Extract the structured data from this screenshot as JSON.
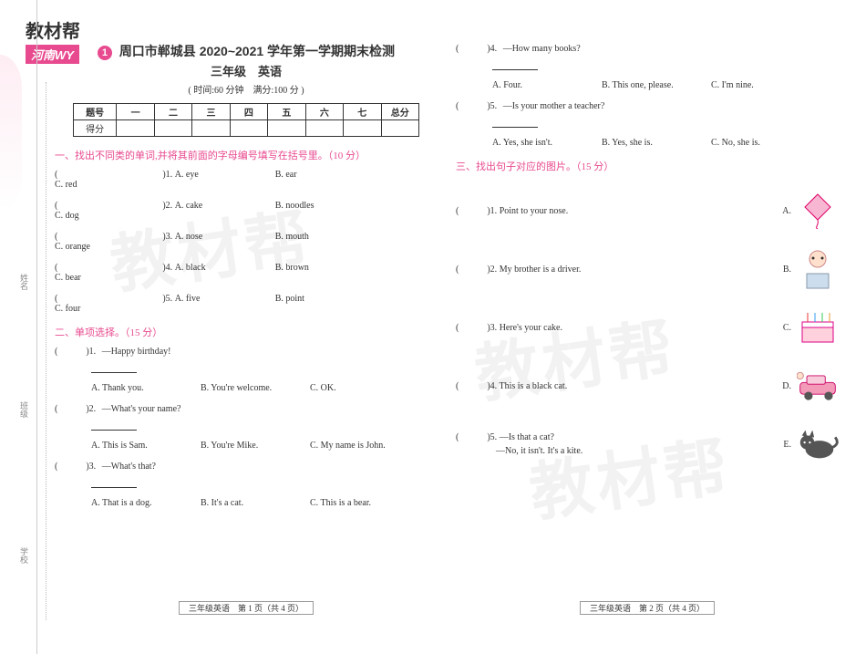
{
  "brand": {
    "title": "教材帮",
    "subtitle": "河南WY"
  },
  "sideLabels": {
    "name": "姓名",
    "class": "班级",
    "school": "学校"
  },
  "watermark": "教材帮",
  "header": {
    "badge": "1",
    "title": "周口市郸城县 2020~2021 学年第一学期期末检测",
    "gradeSubject": "三年级　英语",
    "info": "( 时间:60 分钟　满分:100 分 )"
  },
  "scoreTable": {
    "headers": [
      "题号",
      "一",
      "二",
      "三",
      "四",
      "五",
      "六",
      "七",
      "总分"
    ],
    "rowLabel": "得分"
  },
  "section1": {
    "title": "一、找出不同类的单词,并将其前面的字母编号填写在括号里。（10 分）",
    "items": [
      {
        "n": "1",
        "opts": [
          "A. eye",
          "B. ear",
          "C. red"
        ]
      },
      {
        "n": "2",
        "opts": [
          "A. cake",
          "B. noodles",
          "C. dog"
        ]
      },
      {
        "n": "3",
        "opts": [
          "A. nose",
          "B. mouth",
          "C. orange"
        ]
      },
      {
        "n": "4",
        "opts": [
          "A. black",
          "B. brown",
          "C. bear"
        ]
      },
      {
        "n": "5",
        "opts": [
          "A. five",
          "B. point",
          "C. four"
        ]
      }
    ]
  },
  "section2": {
    "title": "二、单项选择。（15 分）",
    "items": [
      {
        "n": "1",
        "q": "—Happy birthday!",
        "opts": [
          "A. Thank you.",
          "B. You're welcome.",
          "C. OK."
        ]
      },
      {
        "n": "2",
        "q": "—What's your name?",
        "opts": [
          "A. This is Sam.",
          "B. You're Mike.",
          "C. My name is John."
        ]
      },
      {
        "n": "3",
        "q": "—What's that?",
        "opts": [
          "A. That is a dog.",
          "B. It's a cat.",
          "C. This is a bear."
        ]
      },
      {
        "n": "4",
        "q": "—How many books?",
        "opts": [
          "A. Four.",
          "B. This one, please.",
          "C. I'm nine."
        ]
      },
      {
        "n": "5",
        "q": "—Is your mother a teacher?",
        "opts": [
          "A. Yes, she isn't.",
          "B. Yes, she is.",
          "C. No, she is."
        ]
      }
    ]
  },
  "section3": {
    "title": "三、找出句子对应的图片。（15 分）",
    "items": [
      {
        "n": "1",
        "text": "Point to your nose.",
        "label": "A.",
        "icon": "kite"
      },
      {
        "n": "2",
        "text": "My brother is a driver.",
        "label": "B.",
        "icon": "boy"
      },
      {
        "n": "3",
        "text": "Here's your cake.",
        "label": "C.",
        "icon": "cake"
      },
      {
        "n": "4",
        "text": "This is a black cat.",
        "label": "D.",
        "icon": "car"
      },
      {
        "n": "5",
        "text": "—Is that a cat?",
        "text2": "—No, it isn't. It's a kite.",
        "label": "E.",
        "icon": "cat"
      }
    ]
  },
  "footers": {
    "left": "三年级英语　第 1 页（共 4 页）",
    "right": "三年级英语　第 2 页（共 4 页）"
  }
}
